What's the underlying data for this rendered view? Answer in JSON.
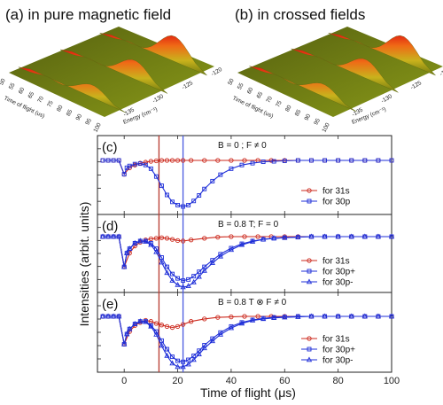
{
  "panels_3d": [
    {
      "label": "(a)  in pure magnetic field",
      "xlabel": "Time of flight (us)",
      "ylabel": "Energy (cm⁻¹)",
      "time_ticks": [
        "50",
        "55",
        "60",
        "65",
        "70",
        "75",
        "80",
        "85",
        "90",
        "95",
        "100"
      ],
      "energy_ticks": [
        "-135",
        "-130",
        "-125",
        "-120"
      ],
      "peaks": [
        0.12,
        0.5,
        0.86
      ]
    },
    {
      "label": "(b)  in crossed fields",
      "xlabel": "Time of flight (us)",
      "ylabel": "Energy (cm⁻¹)",
      "time_ticks": [
        "50",
        "55",
        "60",
        "65",
        "70",
        "75",
        "80",
        "85",
        "90",
        "95",
        "100"
      ],
      "energy_ticks": [
        "-135",
        "-130",
        "-125",
        "-120"
      ],
      "peaks": [
        0.14,
        0.52,
        0.86
      ]
    }
  ],
  "colors": {
    "red": "#cc2a1e",
    "blue": "#1f2fd8",
    "redline": "#b83a30",
    "blueline": "#4a5ae0"
  },
  "chart_data": {
    "type": "line",
    "xlabel": "Time of flight (μs)",
    "ylabel": "Intensities (arbit. units)",
    "xlim": [
      -10,
      100
    ],
    "xticks": [
      0,
      20,
      40,
      60,
      80,
      100
    ],
    "vlines": [
      13,
      22
    ],
    "panels": [
      {
        "label": "(c)",
        "condition": "B = 0 ; F ≠ 0",
        "series": [
          {
            "name": "for 31s",
            "marker": "circle",
            "x": [
              -8,
              -6,
              -4,
              -2,
              0,
              2,
              4,
              6,
              8,
              10,
              12,
              14,
              16,
              18,
              20,
              22,
              25,
              30,
              35,
              40,
              45,
              50,
              55,
              60,
              65,
              70,
              75,
              80,
              85,
              90,
              95,
              100
            ],
            "y": [
              0,
              0,
              0,
              0,
              -0.3,
              -0.16,
              -0.1,
              -0.06,
              -0.04,
              -0.02,
              -0.01,
              0,
              0,
              0,
              0,
              0,
              0,
              0,
              0,
              0,
              0,
              0,
              0,
              0,
              0,
              0,
              0,
              0,
              0,
              0,
              0,
              0
            ]
          },
          {
            "name": "for 30p",
            "marker": "square",
            "x": [
              -8,
              -6,
              -4,
              -2,
              0,
              1,
              2,
              4,
              6,
              8,
              10,
              12,
              14,
              16,
              18,
              20,
              22,
              24,
              26,
              28,
              30,
              33,
              36,
              40,
              44,
              48,
              52,
              56,
              60,
              65,
              70,
              75,
              80,
              85,
              90,
              95,
              100
            ],
            "y": [
              0,
              0,
              0,
              0,
              -0.3,
              -0.16,
              -0.12,
              -0.08,
              -0.07,
              -0.1,
              -0.18,
              -0.35,
              -0.55,
              -0.75,
              -0.9,
              -0.97,
              -1.0,
              -0.97,
              -0.88,
              -0.76,
              -0.62,
              -0.45,
              -0.31,
              -0.18,
              -0.1,
              -0.06,
              -0.03,
              -0.02,
              -0.01,
              0,
              0,
              0,
              0,
              0,
              0,
              0,
              0
            ]
          }
        ]
      },
      {
        "label": "(d)",
        "condition": "B = 0.8 T; F = 0",
        "series": [
          {
            "name": "for 31s",
            "marker": "circle",
            "x": [
              -8,
              -6,
              -4,
              -2,
              0,
              2,
              4,
              6,
              8,
              10,
              12,
              14,
              16,
              18,
              20,
              22,
              25,
              30,
              35,
              40,
              45,
              50,
              55,
              60,
              65,
              70,
              75,
              80,
              85,
              90,
              95,
              100
            ],
            "y": [
              0,
              0,
              0,
              0,
              -0.55,
              -0.3,
              -0.17,
              -0.1,
              -0.06,
              -0.04,
              -0.03,
              -0.02,
              -0.03,
              -0.05,
              -0.07,
              -0.08,
              -0.06,
              -0.03,
              -0.01,
              0,
              0,
              0,
              0,
              0,
              0,
              0,
              0,
              0,
              0,
              0,
              0,
              0
            ]
          },
          {
            "name": "for 30p+",
            "marker": "square",
            "x": [
              -8,
              -6,
              -4,
              -2,
              0,
              1,
              2,
              4,
              6,
              8,
              10,
              12,
              14,
              16,
              18,
              20,
              22,
              24,
              26,
              28,
              30,
              33,
              36,
              40,
              44,
              48,
              52,
              56,
              60,
              65,
              70,
              75,
              80,
              85,
              90,
              95,
              100
            ],
            "y": [
              0,
              0,
              0,
              0,
              -0.55,
              -0.3,
              -0.22,
              -0.12,
              -0.08,
              -0.08,
              -0.12,
              -0.22,
              -0.38,
              -0.55,
              -0.68,
              -0.76,
              -0.8,
              -0.78,
              -0.72,
              -0.64,
              -0.55,
              -0.43,
              -0.32,
              -0.21,
              -0.13,
              -0.08,
              -0.05,
              -0.03,
              -0.02,
              -0.01,
              0,
              0,
              0,
              0,
              0,
              0,
              0
            ]
          },
          {
            "name": "for 30p-",
            "marker": "triangle",
            "x": [
              -8,
              -6,
              -4,
              -2,
              0,
              1,
              2,
              4,
              6,
              8,
              10,
              12,
              14,
              16,
              18,
              20,
              22,
              24,
              26,
              28,
              30,
              33,
              36,
              40,
              44,
              48,
              52,
              56,
              60,
              65,
              70,
              75,
              80,
              85,
              90,
              95,
              100
            ],
            "y": [
              0,
              0,
              0,
              0,
              -0.55,
              -0.3,
              -0.22,
              -0.12,
              -0.08,
              -0.09,
              -0.15,
              -0.28,
              -0.47,
              -0.66,
              -0.8,
              -0.88,
              -0.92,
              -0.9,
              -0.83,
              -0.73,
              -0.62,
              -0.48,
              -0.36,
              -0.24,
              -0.15,
              -0.09,
              -0.05,
              -0.03,
              -0.02,
              -0.01,
              0,
              0,
              0,
              0,
              0,
              0,
              0
            ]
          }
        ]
      },
      {
        "label": "(e)",
        "condition": "B = 0.8 T ⊗ F ≠ 0",
        "series": [
          {
            "name": "for 31s",
            "marker": "circle",
            "x": [
              -8,
              -6,
              -4,
              -2,
              0,
              2,
              4,
              6,
              8,
              10,
              12,
              14,
              16,
              18,
              20,
              22,
              25,
              30,
              35,
              40,
              45,
              50,
              55,
              60,
              65,
              70,
              75,
              80,
              85,
              90,
              95,
              100
            ],
            "y": [
              0,
              0,
              0,
              0,
              -0.55,
              -0.3,
              -0.18,
              -0.12,
              -0.08,
              -0.1,
              -0.14,
              -0.17,
              -0.2,
              -0.22,
              -0.2,
              -0.16,
              -0.1,
              -0.05,
              -0.02,
              -0.01,
              0,
              0,
              0,
              0,
              0,
              0,
              0,
              0,
              0,
              0,
              0,
              0
            ]
          },
          {
            "name": "for 30p+",
            "marker": "square",
            "x": [
              -8,
              -6,
              -4,
              -2,
              0,
              1,
              2,
              4,
              6,
              8,
              10,
              12,
              14,
              16,
              18,
              20,
              22,
              24,
              26,
              28,
              30,
              33,
              36,
              40,
              44,
              48,
              52,
              56,
              60,
              65,
              70,
              75,
              80,
              85,
              90,
              95,
              100
            ],
            "y": [
              0,
              0,
              0,
              0,
              -0.55,
              -0.35,
              -0.25,
              -0.15,
              -0.1,
              -0.1,
              -0.18,
              -0.3,
              -0.48,
              -0.65,
              -0.8,
              -0.88,
              -0.9,
              -0.86,
              -0.78,
              -0.68,
              -0.57,
              -0.44,
              -0.32,
              -0.2,
              -0.12,
              -0.07,
              -0.04,
              -0.02,
              -0.01,
              0,
              0,
              0,
              0,
              0,
              0,
              0,
              0
            ]
          },
          {
            "name": "for 30p-",
            "marker": "triangle",
            "x": [
              -8,
              -6,
              -4,
              -2,
              0,
              1,
              2,
              4,
              6,
              8,
              10,
              12,
              14,
              16,
              18,
              20,
              22,
              24,
              26,
              28,
              30,
              33,
              36,
              40,
              44,
              48,
              52,
              56,
              60,
              65,
              70,
              75,
              80,
              85,
              90,
              95,
              100
            ],
            "y": [
              0,
              0,
              0,
              0,
              -0.55,
              -0.35,
              -0.25,
              -0.15,
              -0.1,
              -0.11,
              -0.2,
              -0.36,
              -0.58,
              -0.78,
              -0.93,
              -1.0,
              -1.0,
              -0.95,
              -0.86,
              -0.75,
              -0.63,
              -0.49,
              -0.36,
              -0.23,
              -0.14,
              -0.08,
              -0.05,
              -0.03,
              -0.02,
              -0.01,
              0,
              0,
              0,
              0,
              0,
              0,
              0
            ]
          }
        ]
      }
    ]
  }
}
